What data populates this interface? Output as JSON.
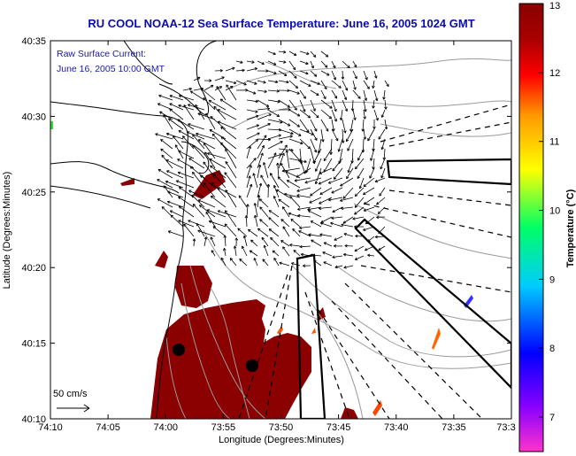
{
  "colors": {
    "title": "#0a0ab0",
    "note": "#1a1aa8",
    "sst_patch": "#8b0000",
    "coast": "#000000",
    "contour": "#999999"
  },
  "chart_data": {
    "type": "map",
    "title": "RU COOL  NOAA-12  Sea Surface Temperature:  June 16, 2005 1024 GMT",
    "xlabel": "Longitude (Degrees:Minutes)",
    "ylabel": "Latitude (Degrees:Minutes)",
    "x_ticks": [
      "74:10",
      "74:05",
      "74:00",
      "73:55",
      "73:50",
      "73:45",
      "73:40",
      "73:35",
      "73:3"
    ],
    "y_ticks": [
      "40:35",
      "40:30",
      "40:25",
      "40:20",
      "40:15",
      "40:10"
    ],
    "note_line1": "Raw Surface Current:",
    "note_line2": "June 16, 2005 10:00 GMT",
    "scale_label": "50 cm/s",
    "colorbar": {
      "label": "Temperature (°C)",
      "min": 6.5,
      "max": 13,
      "ticks": [
        "13",
        "12",
        "11",
        "10",
        "9",
        "8",
        "7"
      ],
      "stops": [
        "#ff33cc",
        "#8800ff",
        "#0000ff",
        "#00ccff",
        "#00ff66",
        "#ffff00",
        "#ff9900",
        "#ff0000",
        "#aa0000",
        "#880000"
      ]
    }
  }
}
